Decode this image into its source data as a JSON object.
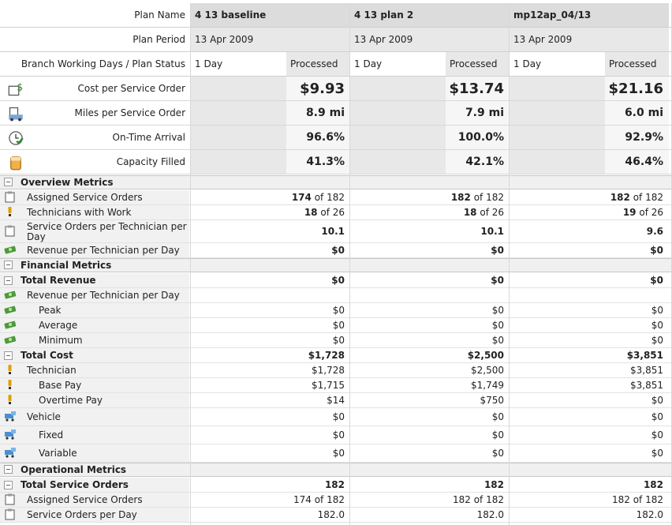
{
  "header": {
    "plan_name_label": "Plan Name",
    "plan_period_label": "Plan Period",
    "status_label": "Branch Working Days / Plan Status",
    "plans": [
      {
        "name": "4 13 baseline",
        "period": "13 Apr 2009",
        "days": "1 Day",
        "status": "Processed"
      },
      {
        "name": "4 13 plan 2",
        "period": "13 Apr 2009",
        "days": "1 Day",
        "status": "Processed"
      },
      {
        "name": "mp12ap_04/13",
        "period": "13 Apr 2009",
        "days": "1 Day",
        "status": "Processed"
      }
    ]
  },
  "kpis": [
    {
      "label": "Cost per Service Order",
      "icon": "cost-dollar-icon",
      "values": [
        "$9.93",
        "$13.74",
        "$21.16"
      ]
    },
    {
      "label": "Miles per Service Order",
      "icon": "truck-icon",
      "values": [
        "8.9 mi",
        "7.9 mi",
        "6.0 mi"
      ]
    },
    {
      "label": "On-Time Arrival",
      "icon": "clock-check-icon",
      "values": [
        "96.6%",
        "100.0%",
        "92.9%"
      ]
    },
    {
      "label": "Capacity Filled",
      "icon": "capacity-jar-icon",
      "values": [
        "41.3%",
        "42.1%",
        "46.4%"
      ]
    }
  ],
  "sections": [
    {
      "title": "Overview Metrics"
    },
    {
      "title": "Financial Metrics"
    },
    {
      "title": "Operational Metrics"
    }
  ],
  "overview": [
    {
      "label": "Assigned Service Orders",
      "icon": "clipboard-icon",
      "values": [
        [
          "174",
          " of 182"
        ],
        [
          "182",
          " of 182"
        ],
        [
          "182",
          " of 182"
        ]
      ]
    },
    {
      "label": "Technicians with Work",
      "icon": "technician-icon",
      "values": [
        [
          "18",
          " of 26"
        ],
        [
          "18",
          " of 26"
        ],
        [
          "19",
          " of 26"
        ]
      ]
    },
    {
      "label": "Service Orders per Technician per Day",
      "icon": "clipboard-icon",
      "values": [
        "10.1",
        "10.1",
        "9.6"
      ]
    },
    {
      "label": "Revenue per Technician per Day",
      "icon": "money-icon",
      "values": [
        "$0",
        "$0",
        "$0"
      ]
    }
  ],
  "financial": [
    {
      "label": "Total Revenue",
      "bold": true,
      "collapse": true,
      "values": [
        "$0",
        "$0",
        "$0"
      ]
    },
    {
      "label": "Revenue per Technician per Day",
      "icon": "money-icon",
      "values": [
        "",
        "",
        ""
      ]
    },
    {
      "label": "Peak",
      "icon": "money-icon",
      "indent": true,
      "values": [
        "$0",
        "$0",
        "$0"
      ]
    },
    {
      "label": "Average",
      "icon": "money-icon",
      "indent": true,
      "values": [
        "$0",
        "$0",
        "$0"
      ]
    },
    {
      "label": "Minimum",
      "icon": "money-icon",
      "indent": true,
      "values": [
        "$0",
        "$0",
        "$0"
      ]
    },
    {
      "label": "Total Cost",
      "bold": true,
      "collapse": true,
      "values": [
        "$1,728",
        "$2,500",
        "$3,851"
      ]
    },
    {
      "label": "Technician",
      "icon": "technician-icon",
      "values": [
        "$1,728",
        "$2,500",
        "$3,851"
      ]
    },
    {
      "label": "Base Pay",
      "icon": "technician-icon",
      "indent": true,
      "values": [
        "$1,715",
        "$1,749",
        "$3,851"
      ]
    },
    {
      "label": "Overtime Pay",
      "icon": "technician-icon",
      "indent": true,
      "values": [
        "$14",
        "$750",
        "$0"
      ]
    },
    {
      "label": "Vehicle",
      "icon": "vehicle-icon",
      "values": [
        "$0",
        "$0",
        "$0"
      ]
    },
    {
      "label": "Fixed",
      "icon": "vehicle-icon",
      "indent": true,
      "values": [
        "$0",
        "$0",
        "$0"
      ]
    },
    {
      "label": "Variable",
      "icon": "vehicle-icon",
      "indent": true,
      "values": [
        "$0",
        "$0",
        "$0"
      ]
    }
  ],
  "operational": [
    {
      "label": "Total Service Orders",
      "bold": true,
      "collapse": true,
      "values": [
        "182",
        "182",
        "182"
      ]
    },
    {
      "label": "Assigned Service Orders",
      "icon": "clipboard-icon",
      "values": [
        "174 of 182",
        "182 of 182",
        "182 of 182"
      ]
    },
    {
      "label": "Service Orders per Day",
      "icon": "clipboard-icon",
      "values": [
        "182.0",
        "182.0",
        "182.0"
      ]
    }
  ],
  "colors": {
    "header_bg": "#dcdcdc",
    "label_bg": "#f1f1f1",
    "section_bg": "#f0f0f0"
  }
}
